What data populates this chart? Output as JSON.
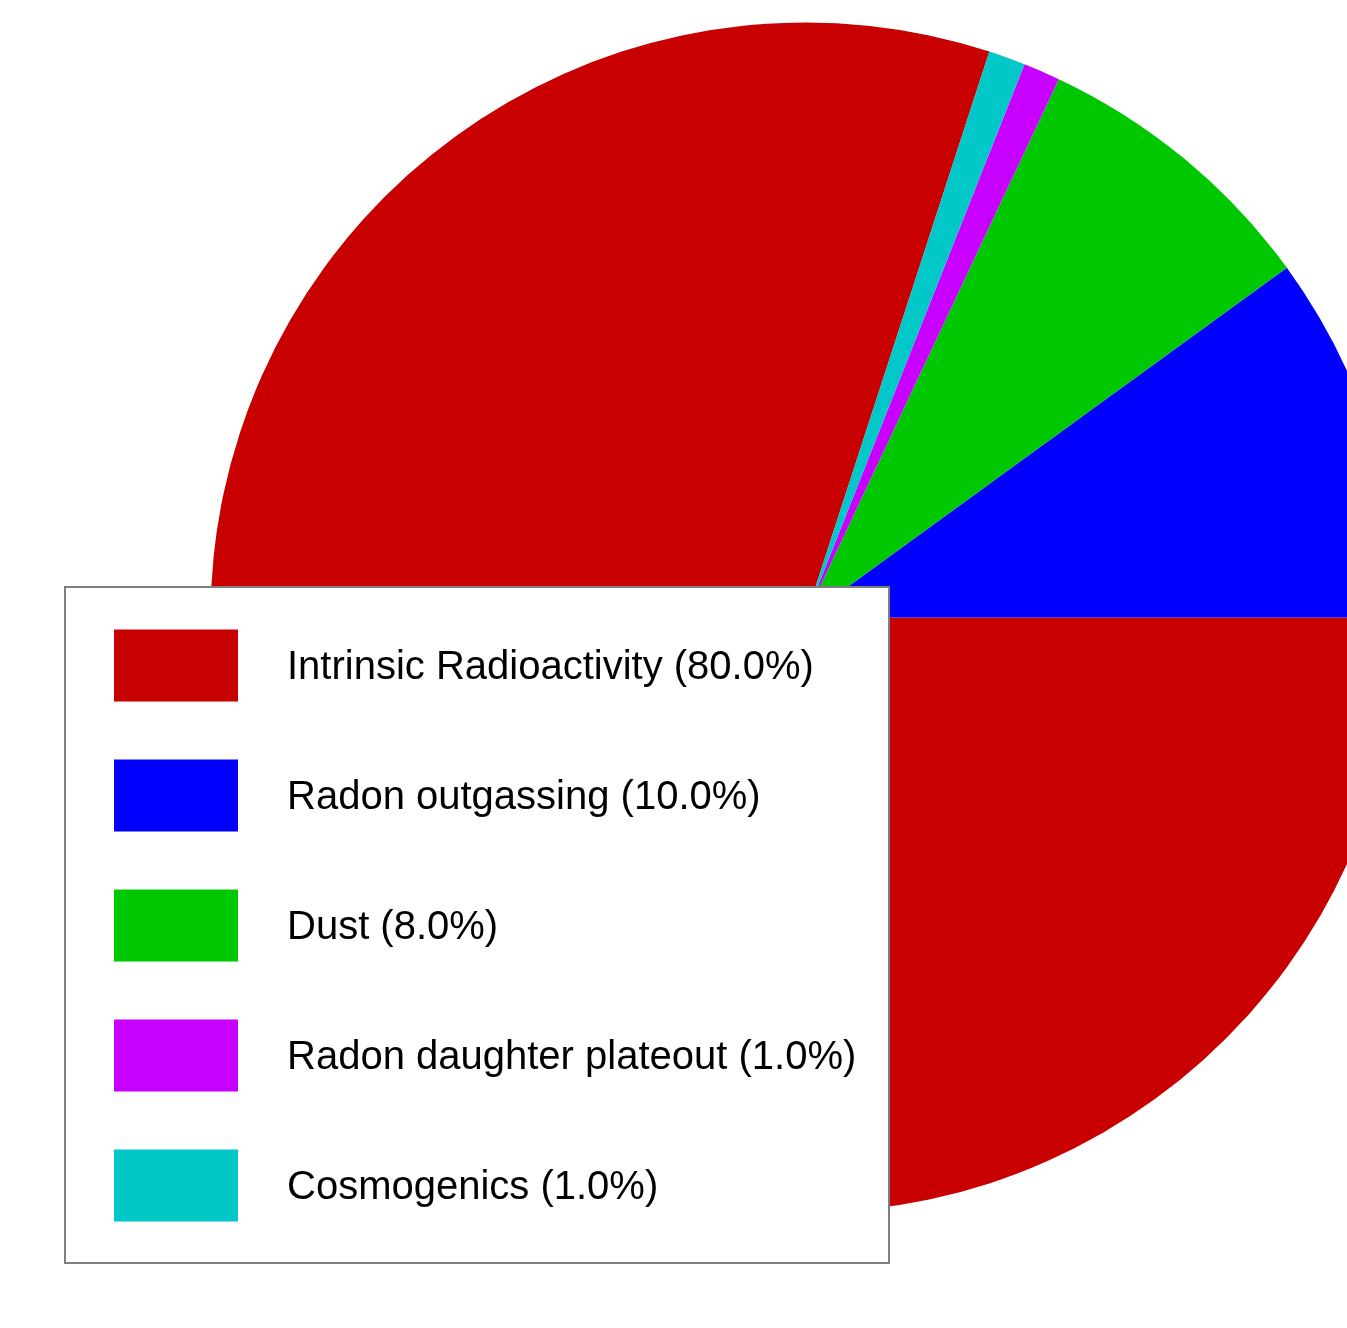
{
  "chart_data": {
    "type": "pie",
    "categories": [
      "Intrinsic Radioactivity (80.0%)",
      "Radon outgassing (10.0%)",
      "Dust (8.0%)",
      "Radon daughter plateout (1.0%)",
      "Cosmogenics (1.0%)"
    ],
    "values": [
      80,
      10,
      8,
      1,
      1
    ],
    "colors": [
      "#c80000",
      "#0000ff",
      "#00c800",
      "#c800ff",
      "#00c8c8"
    ],
    "legend": "bottom left"
  }
}
